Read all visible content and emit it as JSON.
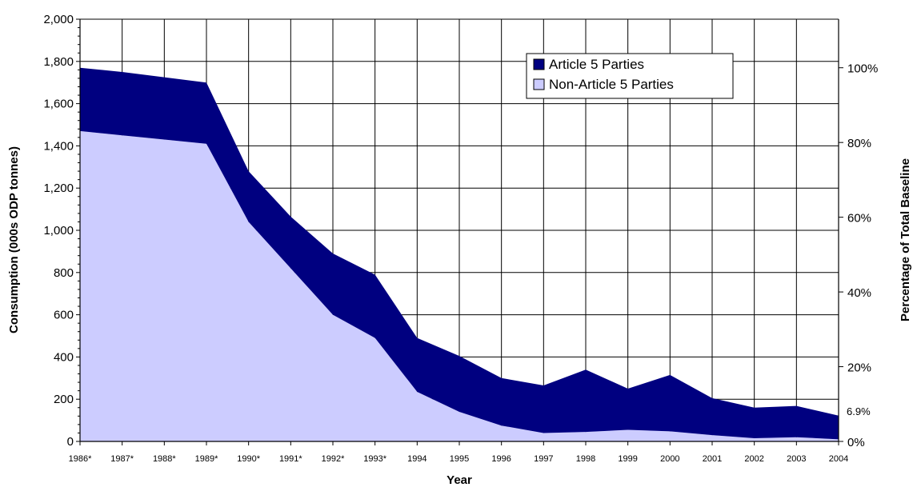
{
  "chart_data": {
    "type": "area",
    "stacked": true,
    "xlabel": "Year",
    "ylabel": "Consumption (000s ODP tonnes)",
    "y2label": "Percentage of Total Baseline",
    "ylim": [
      0,
      2000
    ],
    "yticks": [
      0,
      200,
      400,
      600,
      800,
      1000,
      1200,
      1400,
      1600,
      1800,
      2000
    ],
    "ytick_labels": [
      "0",
      "200",
      "400",
      "600",
      "800",
      "1,000",
      "1,200",
      "1,400",
      "1,600",
      "1,800",
      "2,000"
    ],
    "y2ticks": [
      {
        "label": "0%",
        "value": 0
      },
      {
        "label": "20%",
        "value": 354
      },
      {
        "label": "40%",
        "value": 708
      },
      {
        "label": "60%",
        "value": 1062
      },
      {
        "label": "80%",
        "value": 1416
      },
      {
        "label": "100%",
        "value": 1770
      }
    ],
    "categories": [
      "1986*",
      "1987*",
      "1988*",
      "1989*",
      "1990*",
      "1991*",
      "1992*",
      "1993*",
      "1994",
      "1995",
      "1996",
      "1997",
      "1998",
      "1999",
      "2000",
      "2001",
      "2002",
      "2003",
      "2004"
    ],
    "series": [
      {
        "name": "Non-Article 5 Parties",
        "color": "#ccccff",
        "values": [
          1470,
          1450,
          1430,
          1410,
          1040,
          820,
          600,
          490,
          235,
          140,
          75,
          40,
          45,
          55,
          48,
          30,
          15,
          20,
          10
        ]
      },
      {
        "name": "Article 5 Parties",
        "color": "#000080",
        "values": [
          300,
          300,
          295,
          290,
          240,
          245,
          290,
          300,
          255,
          265,
          225,
          225,
          295,
          195,
          267,
          175,
          145,
          148,
          112
        ]
      }
    ],
    "annotations": [
      {
        "text": "6.9%",
        "x": "2004",
        "y": 122
      }
    ],
    "grid": true,
    "legend_position": "top-right"
  }
}
